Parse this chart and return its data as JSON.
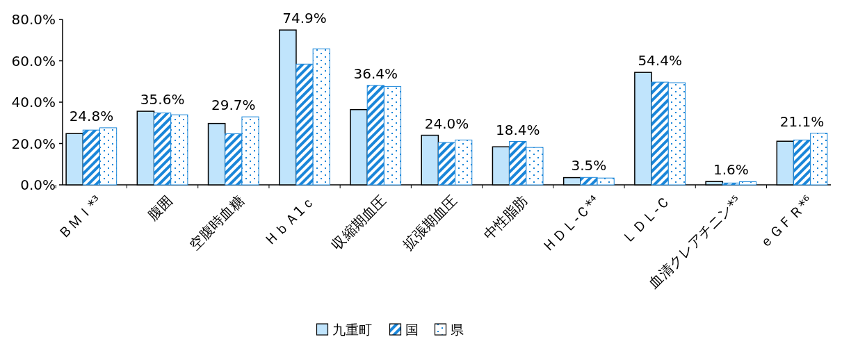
{
  "chart_data": {
    "type": "bar",
    "categories": [
      "ＢＭＩ*³",
      "腹囲",
      "空腹時血糖",
      "ＨｂＡ1ｃ",
      "収縮期血圧",
      "拡張期血圧",
      "中性脂肪",
      "ＨＤＬ-Ｃ*⁴",
      "ＬＤＬ-Ｃ",
      "血清クレアチニン*⁵",
      "ｅＧＦＲ*⁶"
    ],
    "series": [
      {
        "name": "九重町",
        "color": "#c0e4fc",
        "values": [
          24.8,
          35.6,
          29.7,
          74.9,
          36.4,
          24.0,
          18.4,
          3.5,
          54.4,
          1.6,
          21.1
        ],
        "value_labels": [
          "24.8%",
          "35.6%",
          "29.7%",
          "74.9%",
          "36.4%",
          "24.0%",
          "18.4%",
          "3.5%",
          "54.4%",
          "1.6%",
          "21.1%"
        ]
      },
      {
        "name": "国",
        "color": "#1a86d9",
        "values": [
          26.5,
          34.8,
          24.7,
          58.4,
          48.1,
          20.5,
          21.0,
          3.6,
          49.7,
          0.9,
          21.7
        ]
      },
      {
        "name": "県",
        "color": "#1a86d9",
        "values": [
          27.6,
          33.9,
          32.9,
          65.8,
          47.6,
          21.7,
          18.1,
          3.3,
          49.4,
          1.5,
          25.0
        ]
      }
    ],
    "ylim": [
      0,
      80
    ],
    "yticks": [
      {
        "value": 0,
        "label": "0.0%"
      },
      {
        "value": 20,
        "label": "20.0%"
      },
      {
        "value": 40,
        "label": "40.0%"
      },
      {
        "value": 60,
        "label": "60.0%"
      },
      {
        "value": 80,
        "label": "80.0%"
      }
    ],
    "grid": false,
    "legend": "bottom"
  }
}
